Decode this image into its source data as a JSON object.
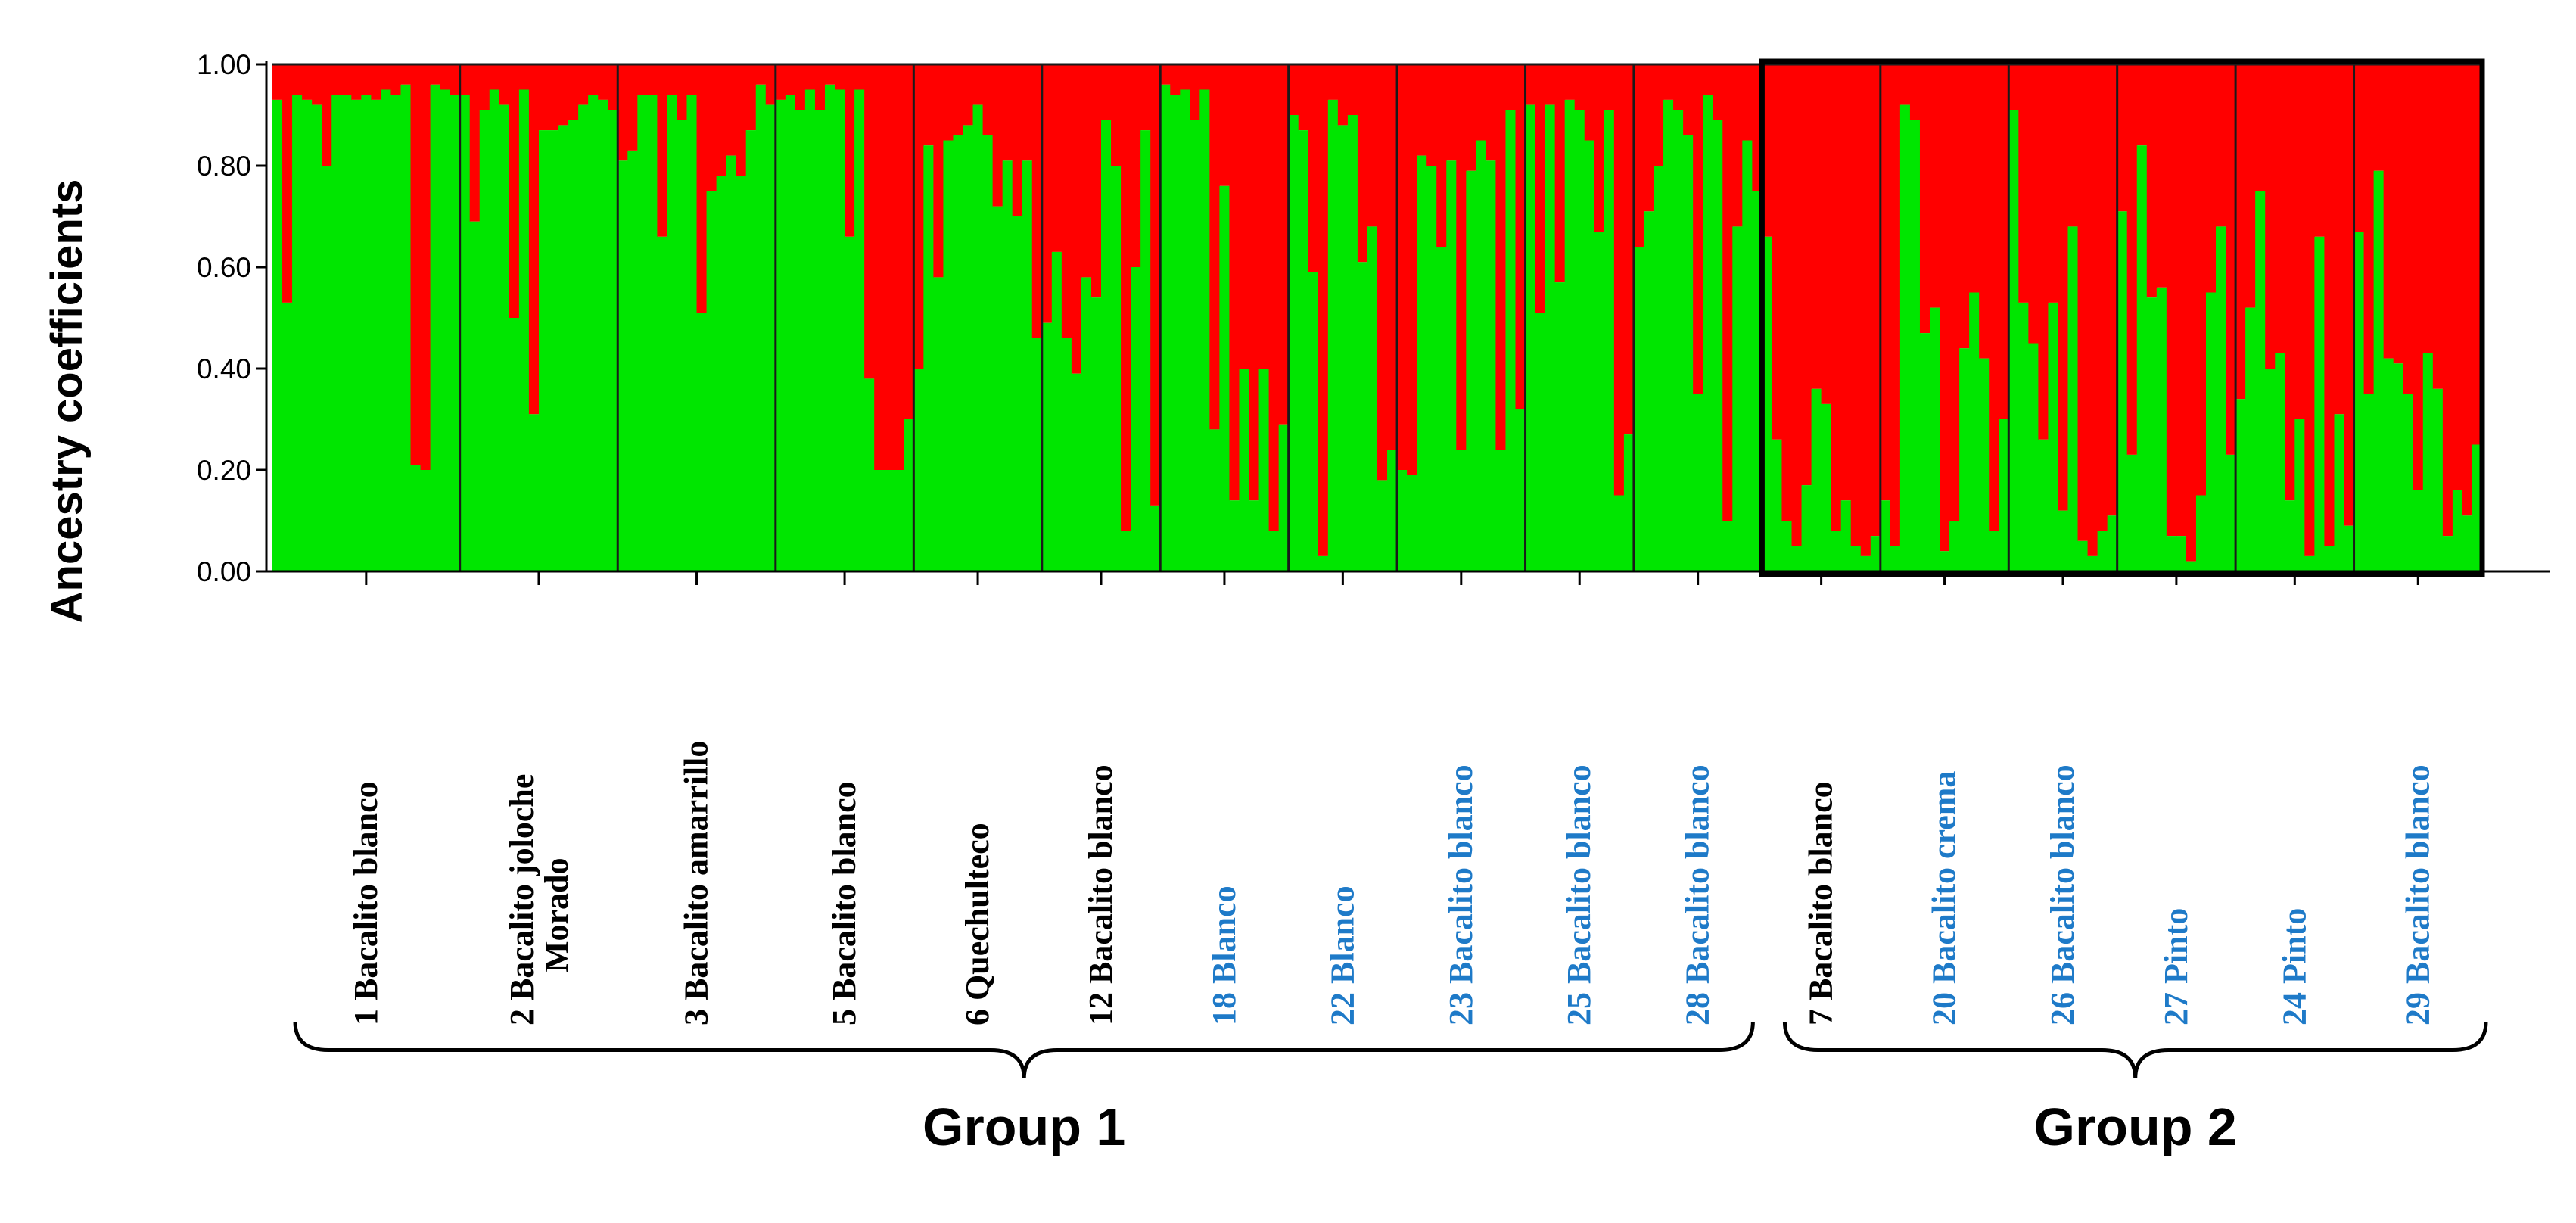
{
  "chart_data": {
    "type": "bar",
    "stacked": true,
    "ylabel": "Ancestry coefficients",
    "ylim": [
      0,
      1
    ],
    "yticks": [
      "0.00",
      "0.20",
      "0.40",
      "0.60",
      "0.80",
      "1.00"
    ],
    "ytick_values": [
      0,
      0.2,
      0.4,
      0.6,
      0.8,
      1.0
    ],
    "colors": {
      "cluster_1": "#00e600",
      "cluster_2": "#ff0000",
      "label_black": "#000000",
      "label_blue": "#1e7ac8"
    },
    "populations": [
      {
        "id": "1",
        "name": "Bacalito blanco",
        "color": "black",
        "group": "Group 1",
        "values": [
          0.93,
          0.53,
          0.94,
          0.93,
          0.92,
          0.8,
          0.94,
          0.94,
          0.93,
          0.94,
          0.93,
          0.95,
          0.94,
          0.96,
          0.21,
          0.2,
          0.96,
          0.95,
          0.94
        ]
      },
      {
        "id": "2",
        "name": "Bacalito joloche Morado",
        "color": "black",
        "group": "Group 1",
        "values": [
          0.94,
          0.69,
          0.91,
          0.95,
          0.92,
          0.5,
          0.95,
          0.31,
          0.87,
          0.87,
          0.88,
          0.89,
          0.92,
          0.94,
          0.93,
          0.91
        ]
      },
      {
        "id": "3",
        "name": "Bacalito amarrillo",
        "color": "black",
        "group": "Group 1",
        "values": [
          0.81,
          0.83,
          0.94,
          0.94,
          0.66,
          0.94,
          0.89,
          0.94,
          0.51,
          0.75,
          0.78,
          0.82,
          0.78,
          0.87,
          0.96,
          0.92
        ]
      },
      {
        "id": "5",
        "name": "Bacalito blanco",
        "color": "black",
        "group": "Group 1",
        "values": [
          0.93,
          0.94,
          0.91,
          0.95,
          0.91,
          0.96,
          0.95,
          0.66,
          0.95,
          0.38,
          0.2,
          0.2,
          0.2,
          0.3
        ]
      },
      {
        "id": "6",
        "name": "Quechulteco",
        "color": "black",
        "group": "Group 1",
        "values": [
          0.4,
          0.84,
          0.58,
          0.85,
          0.86,
          0.88,
          0.92,
          0.86,
          0.72,
          0.81,
          0.7,
          0.81,
          0.46
        ]
      },
      {
        "id": "12",
        "name": "Bacalito blanco",
        "color": "black",
        "group": "Group 1",
        "values": [
          0.49,
          0.63,
          0.46,
          0.39,
          0.58,
          0.54,
          0.89,
          0.8,
          0.08,
          0.6,
          0.87,
          0.13
        ]
      },
      {
        "id": "18",
        "name": "Blanco",
        "color": "blue",
        "group": "Group 1",
        "values": [
          0.96,
          0.94,
          0.95,
          0.89,
          0.95,
          0.28,
          0.76,
          0.14,
          0.4,
          0.14,
          0.4,
          0.08,
          0.29
        ]
      },
      {
        "id": "22",
        "name": "Blanco",
        "color": "blue",
        "group": "Group 1",
        "values": [
          0.9,
          0.87,
          0.59,
          0.03,
          0.93,
          0.88,
          0.9,
          0.61,
          0.68,
          0.18,
          0.24
        ]
      },
      {
        "id": "23",
        "name": "Bacalito blanco",
        "color": "blue",
        "group": "Group 1",
        "values": [
          0.2,
          0.19,
          0.82,
          0.8,
          0.64,
          0.81,
          0.24,
          0.79,
          0.85,
          0.81,
          0.24,
          0.91,
          0.32
        ]
      },
      {
        "id": "25",
        "name": "Bacalito blanco",
        "color": "blue",
        "group": "Group 1",
        "values": [
          0.92,
          0.51,
          0.92,
          0.57,
          0.93,
          0.91,
          0.85,
          0.67,
          0.91,
          0.15,
          0.27
        ]
      },
      {
        "id": "28",
        "name": "Bacalito blanco",
        "color": "blue",
        "group": "Group 1",
        "values": [
          0.64,
          0.71,
          0.8,
          0.93,
          0.91,
          0.86,
          0.35,
          0.94,
          0.89,
          0.1,
          0.68,
          0.85,
          0.75
        ]
      },
      {
        "id": "7",
        "name": "Bacalito blanco",
        "color": "black",
        "group": "Group 2",
        "values": [
          0.66,
          0.26,
          0.1,
          0.05,
          0.17,
          0.36,
          0.33,
          0.08,
          0.14,
          0.05,
          0.03,
          0.07
        ]
      },
      {
        "id": "20",
        "name": "Bacalito crema",
        "color": "blue",
        "group": "Group 2",
        "values": [
          0.14,
          0.05,
          0.92,
          0.89,
          0.47,
          0.52,
          0.04,
          0.1,
          0.44,
          0.55,
          0.42,
          0.08,
          0.3
        ]
      },
      {
        "id": "26",
        "name": "Bacalito blanco",
        "color": "blue",
        "group": "Group 2",
        "values": [
          0.91,
          0.53,
          0.45,
          0.26,
          0.53,
          0.12,
          0.68,
          0.06,
          0.03,
          0.08,
          0.11
        ]
      },
      {
        "id": "27",
        "name": "Pinto",
        "color": "blue",
        "group": "Group 2",
        "values": [
          0.71,
          0.23,
          0.84,
          0.54,
          0.56,
          0.07,
          0.07,
          0.02,
          0.15,
          0.55,
          0.68,
          0.23
        ]
      },
      {
        "id": "24",
        "name": "Pinto",
        "color": "blue",
        "group": "Group 2",
        "values": [
          0.34,
          0.52,
          0.75,
          0.4,
          0.43,
          0.14,
          0.3,
          0.03,
          0.66,
          0.05,
          0.31,
          0.09
        ]
      },
      {
        "id": "29",
        "name": "Bacalito blanco",
        "color": "blue",
        "group": "Group 2",
        "values": [
          0.67,
          0.35,
          0.79,
          0.42,
          0.41,
          0.35,
          0.16,
          0.43,
          0.36,
          0.07,
          0.16,
          0.11,
          0.25
        ]
      }
    ],
    "groups": [
      {
        "label": "Group 1",
        "population_ids": [
          "1",
          "2",
          "3",
          "5",
          "6",
          "12",
          "18",
          "22",
          "23",
          "25",
          "28"
        ]
      },
      {
        "label": "Group 2",
        "population_ids": [
          "7",
          "20",
          "26",
          "27",
          "24",
          "29"
        ]
      }
    ]
  }
}
